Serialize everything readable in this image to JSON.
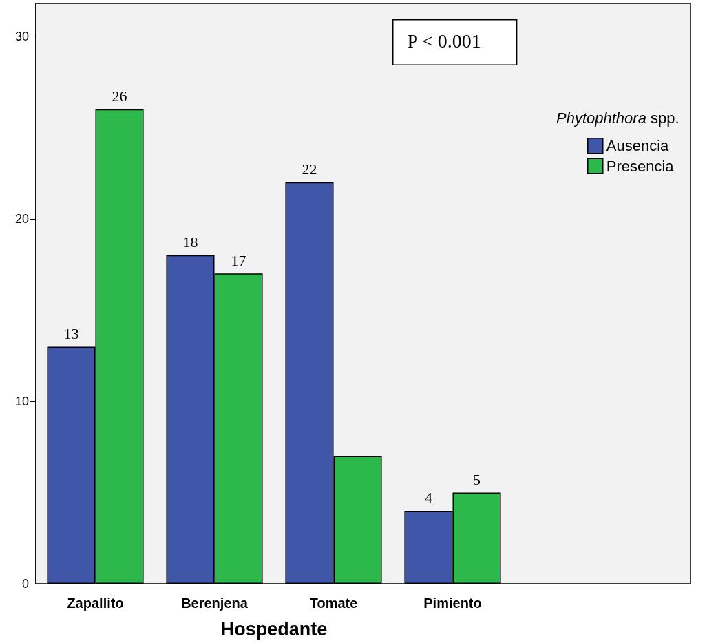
{
  "chart_data": {
    "type": "bar",
    "xlabel": "Hospedante",
    "legend_title": "Phytophthora spp.",
    "annotations": [
      "P < 0.001"
    ],
    "categories": [
      "Zapallito",
      "Berenjena",
      "Tomate",
      "Pimiento"
    ],
    "series": [
      {
        "name": "Ausencia",
        "color": "#3f56a9",
        "values": [
          13,
          18,
          22,
          4
        ],
        "value_labels": [
          "13",
          "18",
          "22",
          "4"
        ]
      },
      {
        "name": "Presencia",
        "color": "#2db84b",
        "values": [
          26,
          17,
          7,
          5
        ],
        "value_labels": [
          "26",
          "17",
          null,
          "5"
        ]
      }
    ],
    "ylim": [
      0,
      31.8
    ],
    "yticks": [
      0,
      10,
      20,
      30
    ],
    "grid": false,
    "legend": "top right"
  }
}
